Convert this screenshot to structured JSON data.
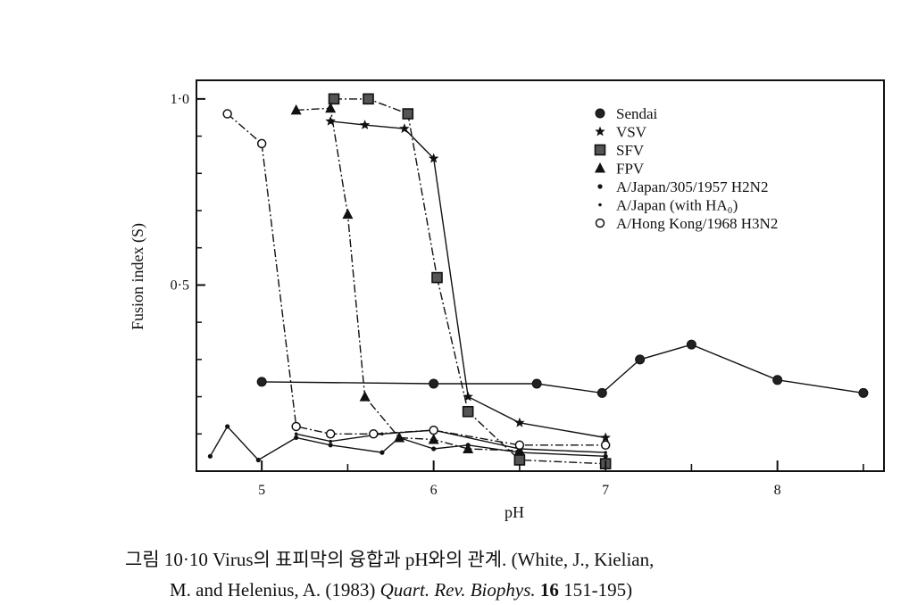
{
  "chart_data": {
    "type": "line",
    "xlabel": "pH",
    "ylabel": "Fusion index (S)",
    "xlim": [
      4.62,
      8.62
    ],
    "ylim": [
      0,
      1.05
    ],
    "x_ticks": [
      {
        "v": 5,
        "label": "5"
      },
      {
        "v": 6,
        "label": "6"
      },
      {
        "v": 7,
        "label": "7"
      },
      {
        "v": 8,
        "label": "8"
      }
    ],
    "y_ticks": [
      {
        "v": 1.0,
        "label": "1·0"
      },
      {
        "v": 0.5,
        "label": "0·5"
      }
    ],
    "grid": false,
    "legend_position": "top-right",
    "legend": [
      {
        "marker": "hexagon-filled",
        "label": "Sendai"
      },
      {
        "marker": "star",
        "label": "VSV"
      },
      {
        "marker": "square-filled",
        "label": "SFV"
      },
      {
        "marker": "triangle-filled",
        "label": "FPV"
      },
      {
        "marker": "dot-small",
        "label": "A/Japan/305/1957 H2N2"
      },
      {
        "marker": "dot-tiny",
        "label": "A/Japan (with HA₀)"
      },
      {
        "marker": "circle-open",
        "label": "A/Hong Kong/1968 H3N2"
      }
    ],
    "series": [
      {
        "name": "Sendai",
        "marker": "hexagon-filled",
        "dash": "solid",
        "x": [
          5.0,
          6.0,
          6.6,
          6.98,
          7.2,
          7.5,
          8.0,
          8.5
        ],
        "y": [
          0.24,
          0.235,
          0.235,
          0.21,
          0.3,
          0.34,
          0.245,
          0.21
        ]
      },
      {
        "name": "VSV",
        "marker": "star",
        "dash": "solid",
        "x": [
          5.4,
          5.6,
          5.83,
          6.0,
          6.2,
          6.5,
          7.0
        ],
        "y": [
          0.94,
          0.93,
          0.92,
          0.84,
          0.2,
          0.13,
          0.09
        ]
      },
      {
        "name": "SFV",
        "marker": "square-filled",
        "dash": "dashdot",
        "x": [
          5.42,
          5.62,
          5.85,
          6.02,
          6.2,
          6.5,
          7.0
        ],
        "y": [
          1.0,
          1.0,
          0.96,
          0.52,
          0.16,
          0.03,
          0.02
        ]
      },
      {
        "name": "FPV",
        "marker": "triangle-filled",
        "dash": "dashdot",
        "x": [
          5.2,
          5.4,
          5.5,
          5.6,
          5.8,
          6.0,
          6.2,
          6.5
        ],
        "y": [
          0.97,
          0.975,
          0.69,
          0.2,
          0.09,
          0.085,
          0.06,
          0.055
        ]
      },
      {
        "name": "A/Japan/305/1957 H2N2",
        "marker": "dot-small",
        "dash": "solid",
        "x": [
          4.7,
          4.8,
          4.98,
          5.2,
          5.4,
          5.7,
          5.8,
          6.0,
          6.2,
          6.5,
          7.0
        ],
        "y": [
          0.04,
          0.12,
          0.03,
          0.09,
          0.07,
          0.05,
          0.09,
          0.06,
          0.07,
          0.05,
          0.04
        ]
      },
      {
        "name": "A/Japan (with HA₀)",
        "marker": "dot-tiny",
        "dash": "solid",
        "x": [
          5.2,
          5.4,
          5.7,
          6.0,
          6.5,
          7.0
        ],
        "y": [
          0.1,
          0.08,
          0.1,
          0.11,
          0.06,
          0.05
        ]
      },
      {
        "name": "A/Hong Kong/1968 H3N2",
        "marker": "circle-open",
        "dash": "dashdot",
        "x": [
          4.8,
          5.0,
          5.2,
          5.4,
          5.65,
          6.0,
          6.5,
          7.0
        ],
        "y": [
          0.96,
          0.88,
          0.12,
          0.1,
          0.1,
          0.11,
          0.07,
          0.07
        ]
      }
    ]
  },
  "caption": {
    "figure_label": "그림 10·10",
    "title": "Virus의 표피막의 융합과 pH와의 관계.",
    "ref_open": "(White, J., Kielian,",
    "ref_authors": "M. and Helenius, A. (1983)",
    "journal": "Quart. Rev. Biophys.",
    "volume": "16",
    "pages": "151-195)"
  }
}
